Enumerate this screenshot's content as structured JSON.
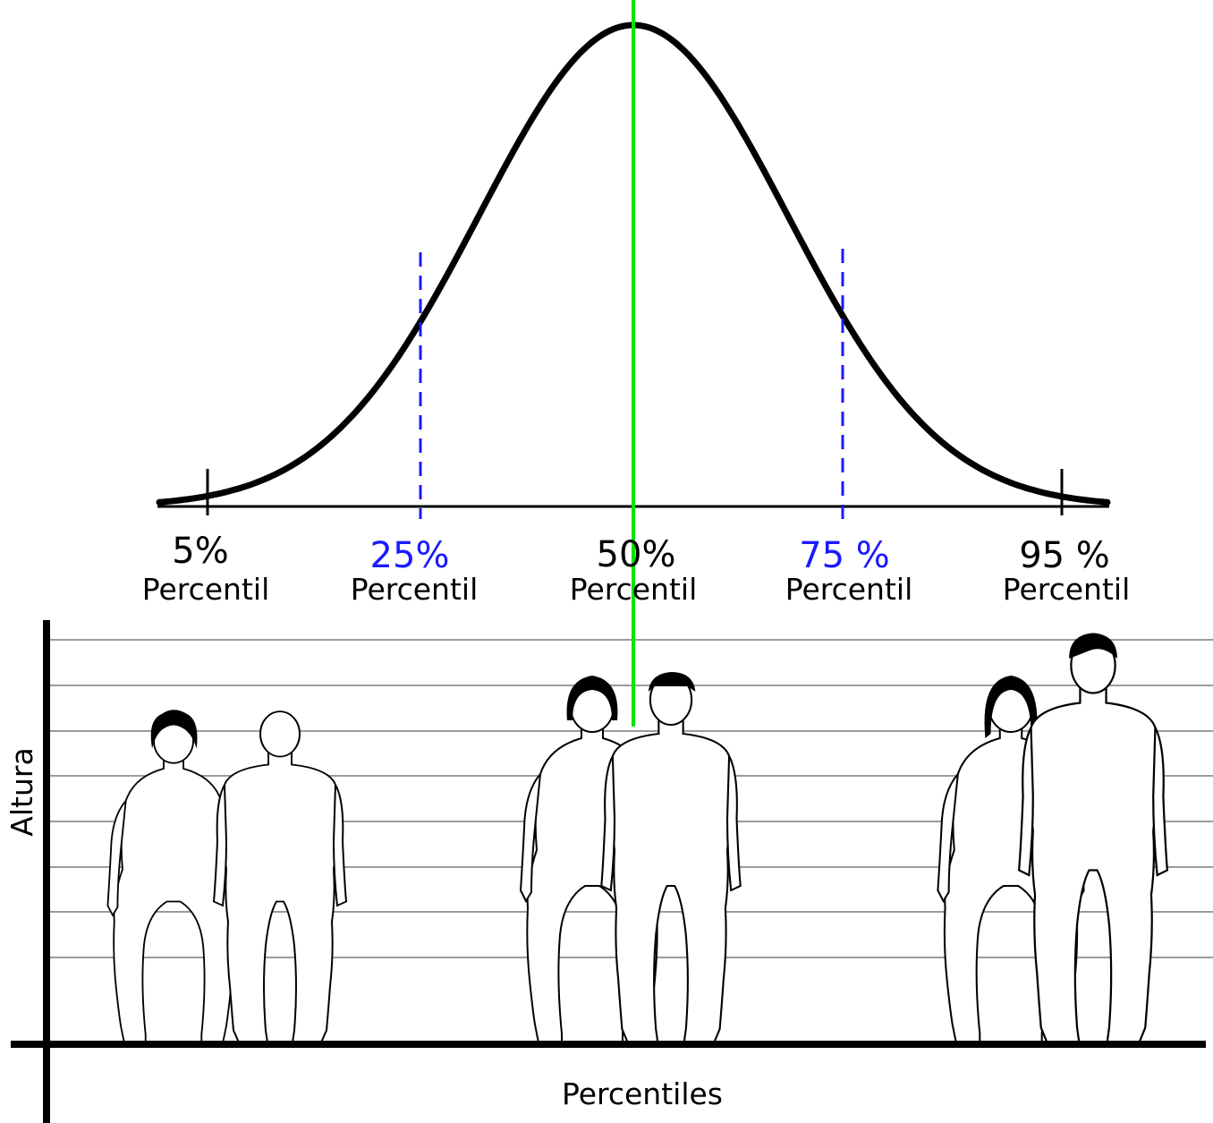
{
  "markers": [
    {
      "id": "p5",
      "percent_label": "5%",
      "label": "Percentil",
      "color": "#000000",
      "line": "solid"
    },
    {
      "id": "p25",
      "percent_label": "25%",
      "label": "Percentil",
      "color": "#1a1aff",
      "line": "dashed"
    },
    {
      "id": "p50",
      "percent_label": "50%",
      "label": "Percentil",
      "color": "#000000",
      "line": "median"
    },
    {
      "id": "p75",
      "percent_label": "75 %",
      "label": "Percentil",
      "color": "#1a1aff",
      "line": "dashed"
    },
    {
      "id": "p95",
      "percent_label": "95 %",
      "label": "Percentil",
      "color": "#000000",
      "line": "solid"
    }
  ],
  "axes": {
    "y_label": "Altura",
    "x_label": "Percentiles"
  },
  "figure_groups": [
    {
      "percentile": "5%",
      "figures": [
        "woman",
        "man"
      ]
    },
    {
      "percentile": "50%",
      "figures": [
        "woman",
        "man"
      ]
    },
    {
      "percentile": "95%",
      "figures": [
        "woman",
        "man"
      ]
    }
  ],
  "colors": {
    "curve": "#000000",
    "median_line": "#00e600",
    "quartile_lines": "#1a1aff",
    "grid_lines": "#7a7a7a"
  }
}
